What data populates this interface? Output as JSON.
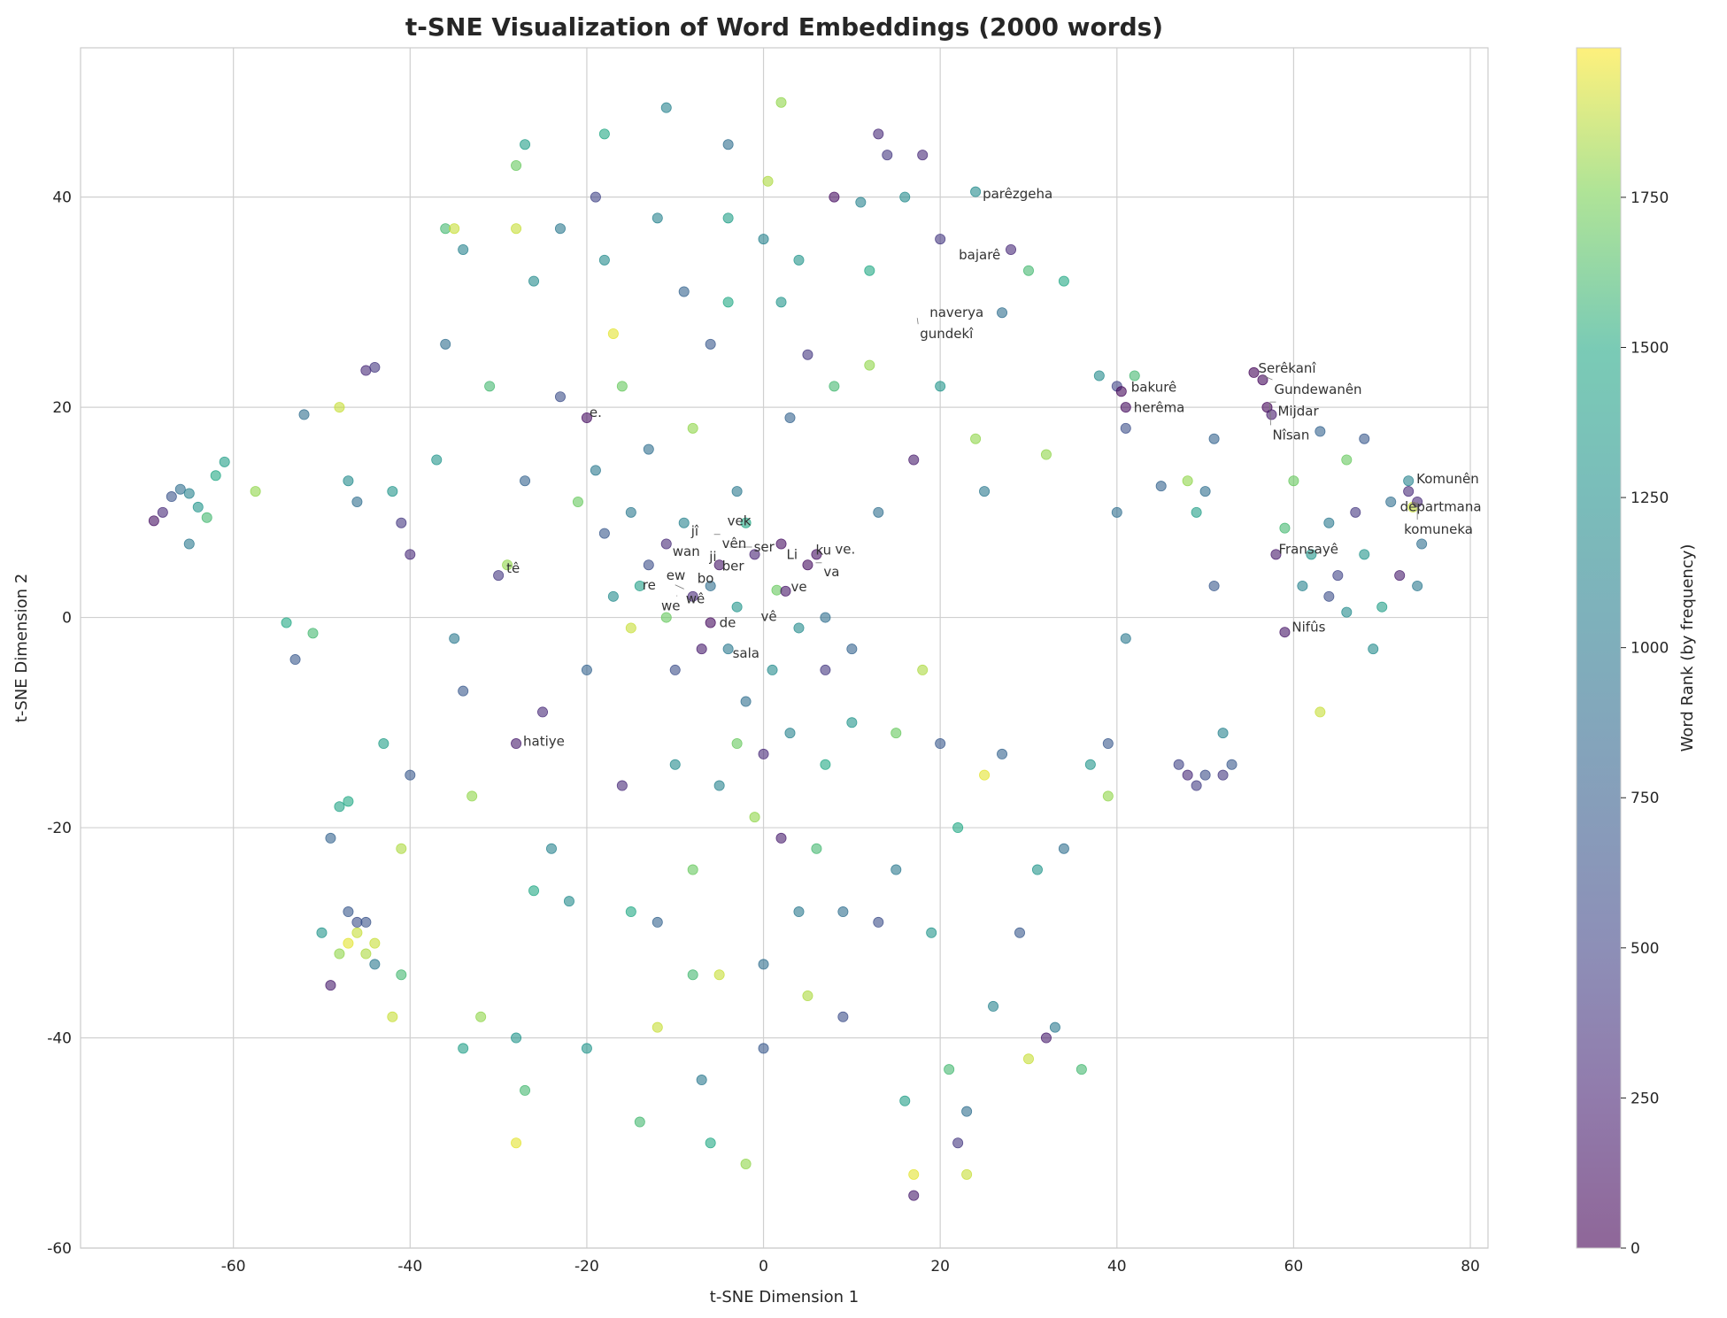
{
  "chart_data": {
    "type": "scatter",
    "title": "t-SNE Visualization of Word Embeddings (2000 words)",
    "xlabel": "t-SNE Dimension 1",
    "ylabel": "t-SNE Dimension 2",
    "xlim": [
      -77.3,
      82
    ],
    "ylim": [
      -60,
      54.2
    ],
    "xticks": [
      -60,
      -40,
      -20,
      0,
      20,
      40,
      60,
      80
    ],
    "yticks": [
      -60,
      -40,
      -20,
      0,
      20,
      40
    ],
    "grid": true,
    "colormap": "viridis",
    "marker_alpha": 0.6,
    "colorbar": {
      "label": "Word Rank (by frequency)",
      "range": [
        0,
        1999
      ],
      "ticks": [
        0,
        250,
        500,
        750,
        1000,
        1250,
        1500,
        1750
      ]
    },
    "points_note_columns": [
      "x",
      "y",
      "rank"
    ],
    "points": [
      [
        -69,
        9.2,
        120
      ],
      [
        -68,
        10,
        300
      ],
      [
        -67,
        11.5,
        650
      ],
      [
        -66,
        12.2,
        900
      ],
      [
        -65,
        11.8,
        1100
      ],
      [
        -64,
        10.5,
        1300
      ],
      [
        -63,
        9.5,
        1600
      ],
      [
        -62,
        13.5,
        1500
      ],
      [
        -61,
        14.8,
        1400
      ],
      [
        -65,
        7,
        1000
      ],
      [
        -57.5,
        12,
        1800
      ],
      [
        -54,
        -0.5,
        1500
      ],
      [
        -53,
        -4,
        700
      ],
      [
        -52,
        19.3,
        900
      ],
      [
        -51,
        -1.5,
        1600
      ],
      [
        -49,
        -21,
        800
      ],
      [
        -48,
        -18,
        1450
      ],
      [
        -47,
        -17.5,
        1500
      ],
      [
        -49,
        -35,
        200
      ],
      [
        -50,
        -30,
        1300
      ],
      [
        -47,
        -28,
        700
      ],
      [
        -46,
        -30,
        1900
      ],
      [
        -45,
        -32,
        1850
      ],
      [
        -47,
        -31,
        1950
      ],
      [
        -44,
        -33,
        1000
      ],
      [
        -46,
        -29,
        600
      ],
      [
        -45,
        -29,
        650
      ],
      [
        -48,
        -32,
        1800
      ],
      [
        -44,
        -31,
        1900
      ],
      [
        -48,
        20,
        1900
      ],
      [
        -47,
        13,
        1200
      ],
      [
        -45,
        23.5,
        300
      ],
      [
        -44,
        23.8,
        400
      ],
      [
        -46,
        11,
        900
      ],
      [
        -43,
        -12,
        1400
      ],
      [
        -42,
        12,
        1300
      ],
      [
        -41,
        9,
        400
      ],
      [
        -40,
        6,
        300
      ],
      [
        -40,
        -15,
        700
      ],
      [
        -41,
        -22,
        1850
      ],
      [
        -42,
        -38,
        1900
      ],
      [
        -41,
        -34,
        1600
      ],
      [
        -37,
        15,
        1300
      ],
      [
        -36,
        37,
        1600
      ],
      [
        -35,
        37,
        1900
      ],
      [
        -34,
        35,
        1100
      ],
      [
        -36,
        26,
        900
      ],
      [
        -35,
        -2,
        1000
      ],
      [
        -34,
        -7,
        700
      ],
      [
        -33,
        -17,
        1800
      ],
      [
        -34,
        -41,
        1400
      ],
      [
        -32,
        -38,
        1800
      ],
      [
        -31,
        22,
        1600
      ],
      [
        -30,
        4,
        400
      ],
      [
        -29,
        5,
        1800
      ],
      [
        -28,
        37,
        1900
      ],
      [
        -28,
        43,
        1700
      ],
      [
        -27,
        45,
        1400
      ],
      [
        -26,
        32,
        1200
      ],
      [
        -27,
        13,
        800
      ],
      [
        -28,
        -12,
        200
      ],
      [
        -26,
        -26,
        1500
      ],
      [
        -28,
        -40,
        1300
      ],
      [
        -28,
        -50,
        1950
      ],
      [
        -27,
        -45,
        1600
      ],
      [
        -25,
        -9,
        300
      ],
      [
        -24,
        -22,
        1100
      ],
      [
        -23,
        37,
        1000
      ],
      [
        -23,
        21,
        600
      ],
      [
        -22,
        -27,
        1200
      ],
      [
        -21,
        11,
        1700
      ],
      [
        -20,
        19,
        100
      ],
      [
        -20,
        -5,
        800
      ],
      [
        -20,
        -41,
        1300
      ],
      [
        -19,
        40,
        500
      ],
      [
        -18,
        46,
        1500
      ],
      [
        -18,
        34,
        1200
      ],
      [
        -17,
        27,
        1950
      ],
      [
        -16,
        22,
        1700
      ],
      [
        -16,
        -16,
        300
      ],
      [
        -15,
        10,
        1000
      ],
      [
        -15,
        -28,
        1500
      ],
      [
        -14,
        -48,
        1600
      ],
      [
        -14,
        3,
        1400
      ],
      [
        -13,
        16,
        900
      ],
      [
        -12,
        38,
        1100
      ],
      [
        -12,
        -29,
        800
      ],
      [
        -12,
        -39,
        1900
      ],
      [
        -11,
        48.5,
        1100
      ],
      [
        -11,
        7,
        300
      ],
      [
        -10,
        -5,
        600
      ],
      [
        -10,
        -14,
        1200
      ],
      [
        -9,
        31,
        800
      ],
      [
        -8,
        18,
        1800
      ],
      [
        -8,
        -24,
        1700
      ],
      [
        -8,
        -34,
        1600
      ],
      [
        -7,
        -3,
        200
      ],
      [
        -7,
        -44,
        1000
      ],
      [
        -6,
        -50,
        1500
      ],
      [
        -6,
        26,
        700
      ],
      [
        -5,
        -16,
        1100
      ],
      [
        -5,
        -34,
        1900
      ],
      [
        -4,
        45,
        900
      ],
      [
        -4,
        38,
        1400
      ],
      [
        -4,
        30,
        1500
      ],
      [
        -3,
        -12,
        1700
      ],
      [
        -3,
        12,
        1000
      ],
      [
        -2,
        -8,
        900
      ],
      [
        -2,
        -52,
        1800
      ],
      [
        -1,
        -19,
        1800
      ],
      [
        0,
        -33,
        900
      ],
      [
        0,
        -41,
        700
      ],
      [
        0,
        36,
        1100
      ],
      [
        0.5,
        41.5,
        1850
      ],
      [
        0,
        -13,
        300
      ],
      [
        1,
        -5,
        1200
      ],
      [
        1.5,
        2.6,
        1700
      ],
      [
        2,
        49,
        1800
      ],
      [
        2,
        30,
        1300
      ],
      [
        2,
        -21,
        200
      ],
      [
        3,
        -11,
        1100
      ],
      [
        3,
        19,
        800
      ],
      [
        4,
        34,
        1300
      ],
      [
        4,
        -28,
        1000
      ],
      [
        5,
        -36,
        1850
      ],
      [
        5,
        25,
        400
      ],
      [
        6,
        -22,
        1600
      ],
      [
        7,
        -14,
        1500
      ],
      [
        7,
        -5,
        400
      ],
      [
        8,
        40,
        100
      ],
      [
        8,
        22,
        1600
      ],
      [
        9,
        -38,
        600
      ],
      [
        9,
        -28,
        900
      ],
      [
        10,
        -10,
        1300
      ],
      [
        10,
        -3,
        800
      ],
      [
        11,
        39.5,
        1100
      ],
      [
        12,
        33,
        1500
      ],
      [
        12,
        24,
        1800
      ],
      [
        13,
        46,
        300
      ],
      [
        13,
        10,
        900
      ],
      [
        13,
        -29,
        600
      ],
      [
        14,
        44,
        400
      ],
      [
        15,
        -11,
        1700
      ],
      [
        15,
        -24,
        1000
      ],
      [
        16,
        -46,
        1400
      ],
      [
        16,
        40,
        1200
      ],
      [
        17,
        -55,
        200
      ],
      [
        17,
        -53,
        1950
      ],
      [
        17,
        15,
        200
      ],
      [
        18,
        44,
        300
      ],
      [
        18,
        -5,
        1850
      ],
      [
        19,
        -30,
        1300
      ],
      [
        20,
        36,
        400
      ],
      [
        20,
        22,
        1300
      ],
      [
        20,
        -12,
        700
      ],
      [
        21,
        -43,
        1600
      ],
      [
        22,
        -20,
        1500
      ],
      [
        22,
        -50,
        400
      ],
      [
        23,
        -47,
        900
      ],
      [
        23,
        -53,
        1900
      ],
      [
        24,
        40.5,
        1200
      ],
      [
        24,
        17,
        1800
      ],
      [
        25,
        12,
        1000
      ],
      [
        25,
        -15,
        1950
      ],
      [
        26,
        -37,
        1100
      ],
      [
        27,
        29,
        900
      ],
      [
        27,
        -13,
        800
      ],
      [
        28,
        35,
        300
      ],
      [
        29,
        -30,
        700
      ],
      [
        30,
        33,
        1600
      ],
      [
        30,
        -42,
        1900
      ],
      [
        31,
        -24,
        1300
      ],
      [
        32,
        15.5,
        1800
      ],
      [
        32,
        -40,
        200
      ],
      [
        33,
        -39,
        1000
      ],
      [
        34,
        -22,
        900
      ],
      [
        34,
        32,
        1500
      ],
      [
        36,
        -43,
        1600
      ],
      [
        37,
        -14,
        1300
      ],
      [
        38,
        23,
        1200
      ],
      [
        39,
        -12,
        700
      ],
      [
        39,
        -17,
        1800
      ],
      [
        40,
        22,
        500
      ],
      [
        40,
        10,
        900
      ],
      [
        40.5,
        21.5,
        50
      ],
      [
        41,
        20,
        80
      ],
      [
        41,
        18,
        600
      ],
      [
        41,
        -2,
        1000
      ],
      [
        42,
        23,
        1600
      ],
      [
        45,
        12.5,
        800
      ],
      [
        47,
        -14,
        500
      ],
      [
        48,
        -15,
        300
      ],
      [
        49,
        -16,
        450
      ],
      [
        50,
        -15,
        600
      ],
      [
        52,
        -15,
        400
      ],
      [
        53,
        -14,
        700
      ],
      [
        48,
        13,
        1800
      ],
      [
        49,
        10,
        1400
      ],
      [
        50,
        12,
        900
      ],
      [
        51,
        17,
        800
      ],
      [
        51,
        3,
        700
      ],
      [
        52,
        -11,
        1100
      ],
      [
        55.5,
        23.3,
        30
      ],
      [
        56.5,
        22.6,
        60
      ],
      [
        57,
        20,
        40
      ],
      [
        57.5,
        19.3,
        200
      ],
      [
        58,
        6,
        180
      ],
      [
        59,
        8.5,
        1600
      ],
      [
        59,
        -1.4,
        150
      ],
      [
        60,
        13,
        1700
      ],
      [
        61,
        3,
        1100
      ],
      [
        62,
        6,
        1300
      ],
      [
        63,
        17.7,
        800
      ],
      [
        63,
        -9,
        1900
      ],
      [
        64,
        9,
        1000
      ],
      [
        64,
        2,
        600
      ],
      [
        65,
        4,
        500
      ],
      [
        66,
        15,
        1700
      ],
      [
        66,
        0.5,
        1200
      ],
      [
        67,
        10,
        400
      ],
      [
        68,
        17,
        700
      ],
      [
        68,
        6,
        1300
      ],
      [
        69,
        -3,
        1200
      ],
      [
        70,
        1,
        1400
      ],
      [
        71,
        11,
        900
      ],
      [
        72,
        4,
        200
      ],
      [
        73,
        13,
        1100
      ],
      [
        73,
        12,
        300
      ],
      [
        73.5,
        10.5,
        1900
      ],
      [
        74,
        11,
        300
      ],
      [
        74.5,
        7,
        900
      ],
      [
        74,
        3,
        1000
      ],
      [
        -1,
        6,
        250
      ],
      [
        -2,
        9,
        1500
      ],
      [
        -5,
        5,
        150
      ],
      [
        -6,
        3,
        900
      ],
      [
        -8,
        2,
        300
      ],
      [
        -9,
        9,
        1100
      ],
      [
        -11,
        0,
        1700
      ],
      [
        -13,
        5,
        600
      ],
      [
        -3,
        1,
        1300
      ],
      [
        2,
        7,
        100
      ],
      [
        5,
        5,
        90
      ],
      [
        6,
        6,
        110
      ],
      [
        2.5,
        2.5,
        150
      ],
      [
        -6,
        -0.5,
        70
      ],
      [
        -4,
        -3,
        1000
      ],
      [
        4,
        -1,
        1200
      ],
      [
        7,
        0,
        900
      ],
      [
        -15,
        -1,
        1900
      ],
      [
        -17,
        2,
        1200
      ],
      [
        -18,
        8,
        700
      ],
      [
        -19,
        14,
        1000
      ]
    ],
    "annotations": [
      {
        "text": "parêzgeha",
        "x": 24.5,
        "y": 40.3
      },
      {
        "text": "bajarê",
        "x": 21.8,
        "y": 34.5
      },
      {
        "text": "naverya",
        "x": 18.5,
        "y": 29.0
      },
      {
        "text": "gundekî",
        "x": 17.4,
        "y": 28.5
      },
      {
        "text": "e.",
        "x": -20,
        "y": 19.5
      },
      {
        "text": "bakurê",
        "x": 41.3,
        "y": 21.9
      },
      {
        "text": "herêma",
        "x": 41.3,
        "y": 20.4
      },
      {
        "text": "Serêkanî",
        "x": 55.7,
        "y": 23.7
      },
      {
        "text": "Gundewanên",
        "x": 56.6,
        "y": 23.0
      },
      {
        "text": "Mijdar",
        "x": 57.3,
        "y": 20.5
      },
      {
        "text": "Nîsan",
        "x": 57.3,
        "y": 20.4
      },
      {
        "text": "Komunên",
        "x": 73.6,
        "y": 13.2
      },
      {
        "text": "departmana",
        "x": 73.3,
        "y": 11.3
      },
      {
        "text": "komuneka",
        "x": 74.0,
        "y": 11.0
      },
      {
        "text": "Fransayê",
        "x": 58.0,
        "y": 6.5
      },
      {
        "text": "Nifûs",
        "x": 59.5,
        "y": -0.9
      },
      {
        "text": "tê",
        "x": -29.4,
        "y": 4.7
      },
      {
        "text": "hatiye",
        "x": -27.5,
        "y": -11.8
      },
      {
        "text": "vek",
        "x": -4.4,
        "y": 9.2
      },
      {
        "text": "vên",
        "x": -5.6,
        "y": 7.9
      },
      {
        "text": "jî",
        "x": -8.5,
        "y": 8.2
      },
      {
        "text": "wan",
        "x": -10.6,
        "y": 6.8
      },
      {
        "text": "ser",
        "x": -3.8,
        "y": 6.7
      },
      {
        "text": "ji",
        "x": -5.4,
        "y": 6.3
      },
      {
        "text": "ber",
        "x": -5.6,
        "y": 4.9
      },
      {
        "text": "ew",
        "x": -11.3,
        "y": 4.0
      },
      {
        "text": "bo",
        "x": -7.8,
        "y": 3.7
      },
      {
        "text": "wê",
        "x": -10.0,
        "y": 3.1
      },
      {
        "text": "we",
        "x": -9.8,
        "y": 2.1
      },
      {
        "text": "re",
        "x": -14.0,
        "y": 3.1
      },
      {
        "text": "de",
        "x": -5.3,
        "y": -0.5
      },
      {
        "text": "vê",
        "x": -0.6,
        "y": 0.1
      },
      {
        "text": "sala",
        "x": -3.8,
        "y": -3.4
      },
      {
        "text": "Li",
        "x": 2.3,
        "y": 6.0
      },
      {
        "text": "ku",
        "x": 5.6,
        "y": 6.4
      },
      {
        "text": "ve.",
        "x": 7.8,
        "y": 6.5
      },
      {
        "text": "va",
        "x": 5.9,
        "y": 5.2
      },
      {
        "text": "ve",
        "x": 2.8,
        "y": 2.9
      }
    ]
  }
}
